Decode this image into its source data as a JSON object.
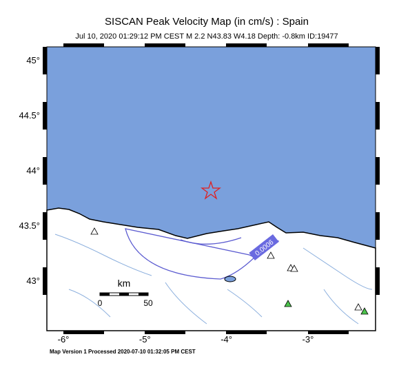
{
  "header": {
    "title": "SISCAN Peak Velocity Map (in cm/s) : Spain",
    "subtitle": "Jul 10, 2020 01:29:12 PM CEST   M 2.2   N43.83 W4.18   Depth: -0.8km   ID:19477"
  },
  "map": {
    "lat_labels": [
      "45°",
      "44.5°",
      "44°",
      "43.5°",
      "43°"
    ],
    "lon_labels": [
      "-6°",
      "-5°",
      "-4°",
      "-3°"
    ],
    "scale": {
      "unit": "km",
      "labels": [
        "0",
        "50"
      ]
    },
    "contour_label": "0.0006"
  },
  "footer": "Map Version 1 Processed 2020-07-10 01:32:05 PM CEST"
}
